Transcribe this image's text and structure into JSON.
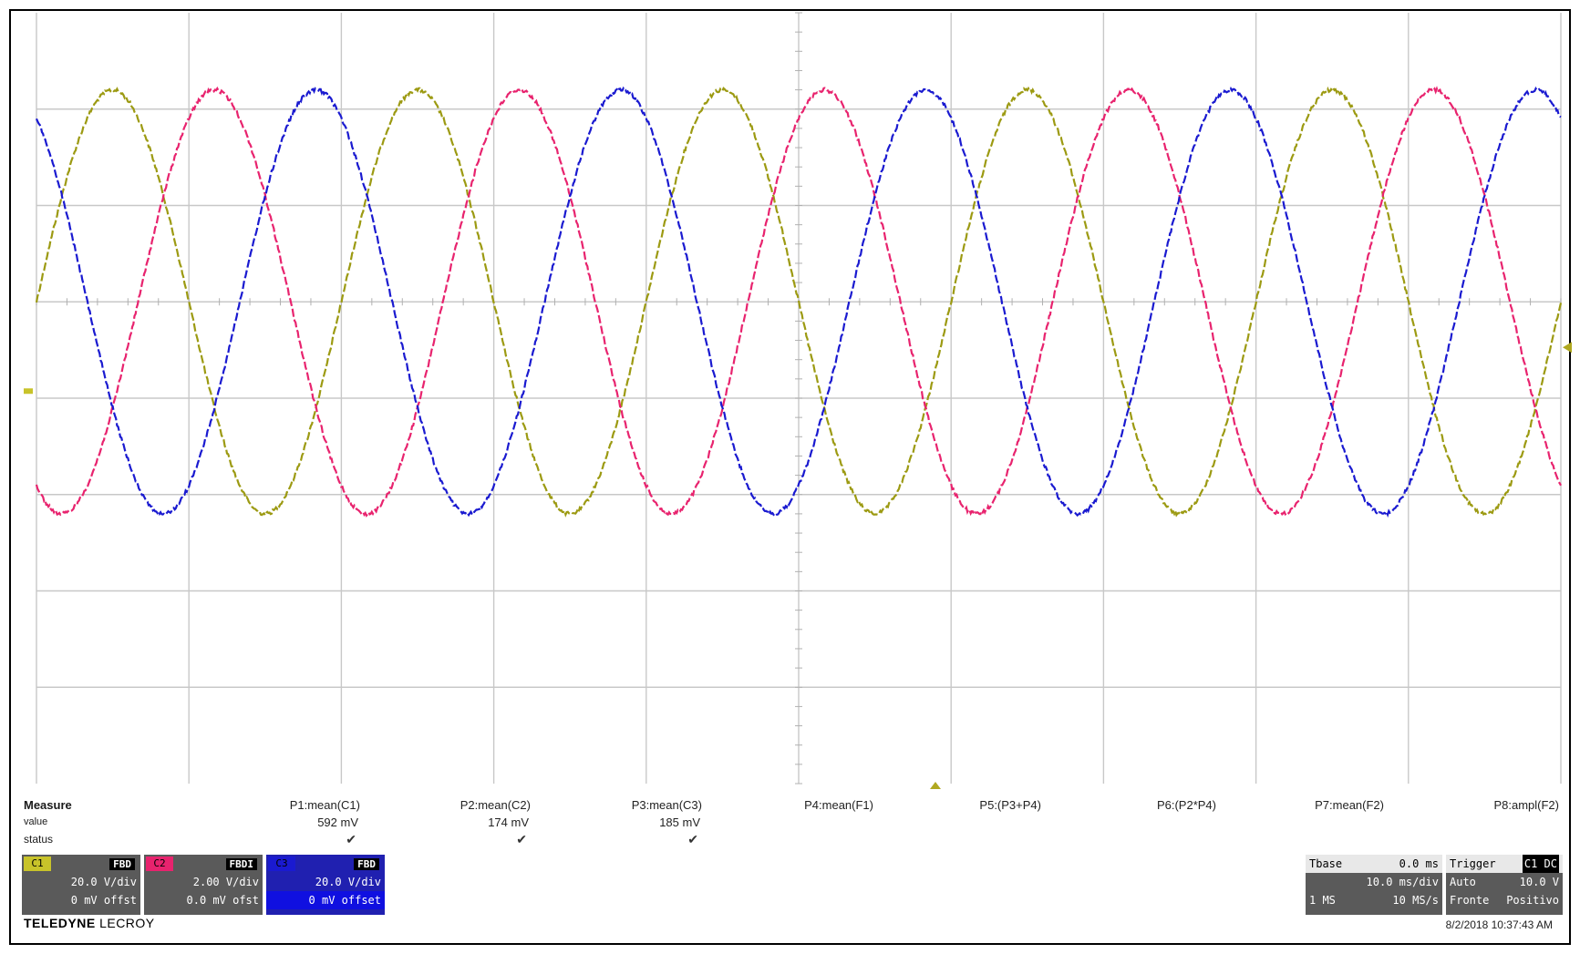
{
  "chart_data": {
    "type": "line",
    "x_divisions": 10,
    "y_divisions": 8,
    "grid": true,
    "series": [
      {
        "color": "#9c9a12",
        "amplitude_div": 2.2,
        "phase_deg": 0
      },
      {
        "color": "#e8236e",
        "amplitude_div": 2.2,
        "phase_deg": -120
      },
      {
        "color": "#1a1ad0",
        "amplitude_div": 2.2,
        "phase_deg": 120
      }
    ],
    "cycles": 5,
    "offset_div": 1.0
  },
  "measure": {
    "title": "Measure",
    "value_label": "value",
    "status_label": "status",
    "params": [
      {
        "name": "P1:mean(C1)",
        "value": "592 mV",
        "status": "✔"
      },
      {
        "name": "P2:mean(C2)",
        "value": "174 mV",
        "status": "✔"
      },
      {
        "name": "P3:mean(C3)",
        "value": "185 mV",
        "status": "✔"
      },
      {
        "name": "P4:mean(F1)",
        "value": "",
        "status": ""
      },
      {
        "name": "P5:(P3+P4)",
        "value": "",
        "status": ""
      },
      {
        "name": "P6:(P2*P4)",
        "value": "",
        "status": ""
      },
      {
        "name": "P7:mean(F2)",
        "value": "",
        "status": ""
      },
      {
        "name": "P8:ampl(F2)",
        "value": "",
        "status": ""
      }
    ]
  },
  "channels": [
    {
      "tag": "C1",
      "mode": "FBD",
      "vdiv": "20.0 V/div",
      "offset": "0 mV offst",
      "color": "#c8c32a"
    },
    {
      "tag": "C2",
      "mode": "FBDI",
      "vdiv": "2.00 V/div",
      "offset": "0.0 mV ofst",
      "color": "#e8236e"
    },
    {
      "tag": "C3",
      "mode": "FBD",
      "vdiv": "20.0 V/div",
      "offset": "0 mV offset",
      "color": "#1a1ad0"
    }
  ],
  "timebase": {
    "label": "Tbase",
    "delay": "0.0 ms",
    "tdiv": "10.0 ms/div",
    "samples": "1 MS",
    "rate": "10 MS/s"
  },
  "trigger": {
    "label": "Trigger",
    "source": "C1 DC",
    "mode": "Auto",
    "level": "10.0 V",
    "type": "Fronte",
    "slope": "Positivo"
  },
  "brand": {
    "name": "TELEDYNE",
    "sub": " LECROY"
  },
  "timestamp": "8/2/2018 10:37:43 AM"
}
